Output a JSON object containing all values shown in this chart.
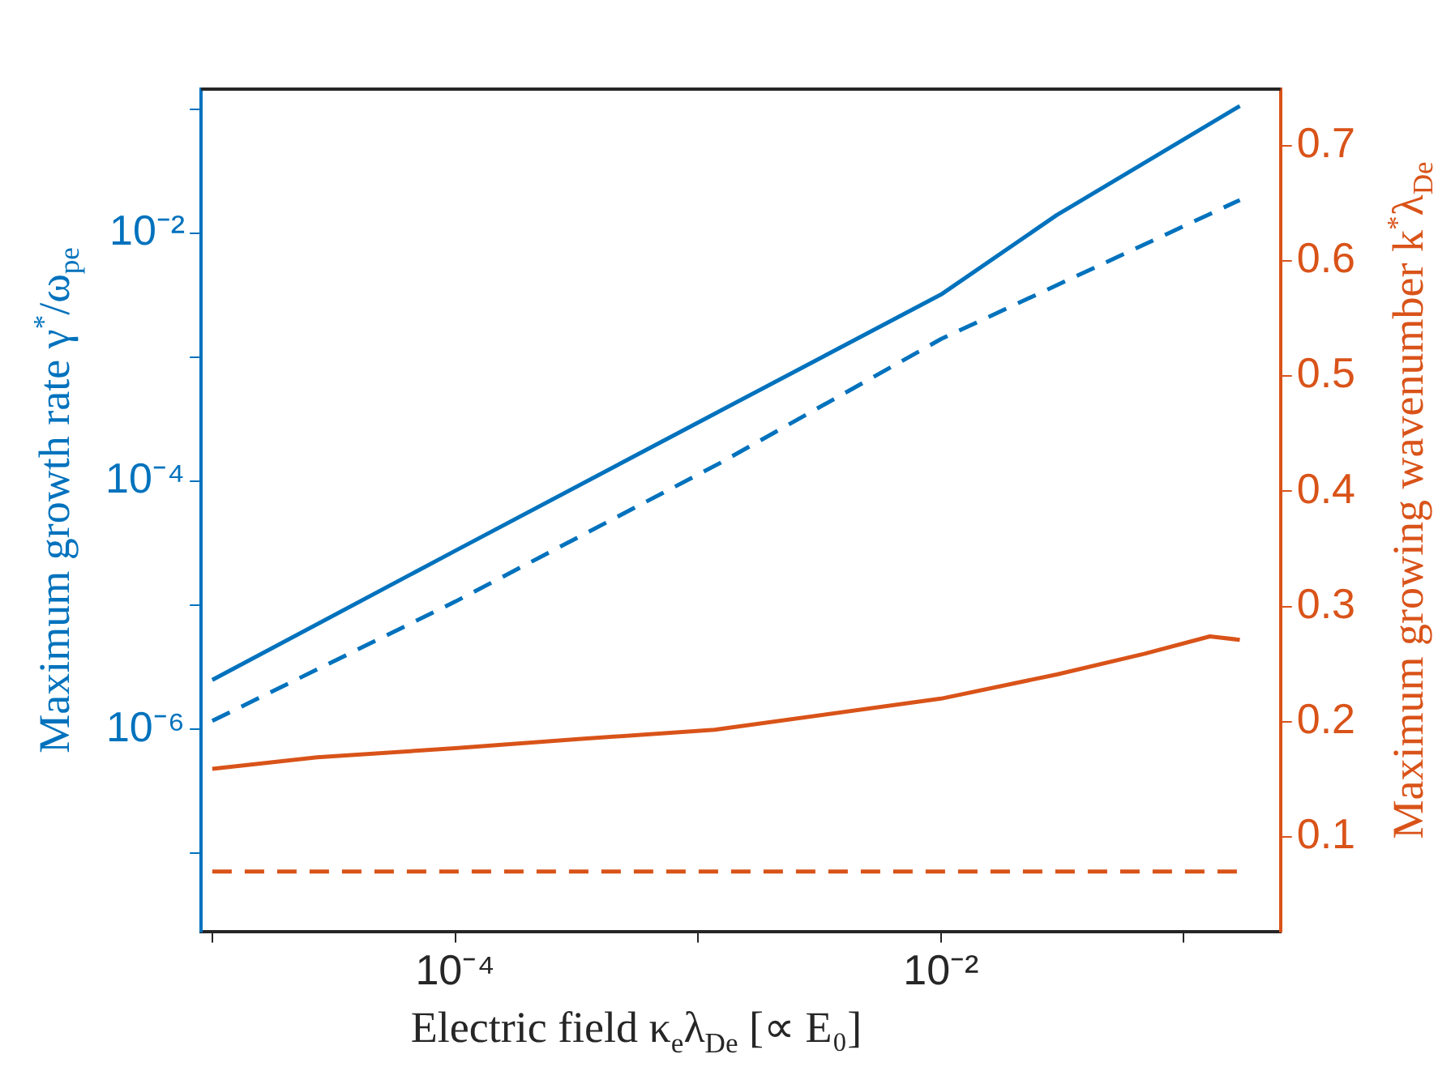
{
  "chart_data": {
    "type": "line",
    "xlabel": "Electric field κ$_{e}$λ$_{De}$ [∝ E₀]",
    "ylabel": "Maximum growth rate γ$^{*}$/ω$_{pe}$",
    "y2label": "Maximum growing wavenumber k$^{*}$λ$_{De}$",
    "log": "xy",
    "xlim": [
      9e-06,
      0.25
    ],
    "xticks": [
      {
        "value": 1e-05,
        "label": null
      },
      {
        "value": 0.0001,
        "label": "10⁻⁴"
      },
      {
        "value": 0.001,
        "label": null
      },
      {
        "value": 0.01,
        "label": "10⁻²"
      },
      {
        "value": 0.1,
        "label": null
      }
    ],
    "ylim": [
      2.35e-08,
      0.145
    ],
    "yticks": [
      {
        "value": 1e-07,
        "label": null
      },
      {
        "value": 1e-06,
        "label": "10⁻⁶"
      },
      {
        "value": 1e-05,
        "label": null
      },
      {
        "value": 0.0001,
        "label": "10⁻⁴"
      },
      {
        "value": 0.001,
        "label": null
      },
      {
        "value": 0.01,
        "label": "10⁻²"
      },
      {
        "value": 0.1,
        "label": null
      }
    ],
    "y2lim": [
      0.018,
      0.749
    ],
    "y2ticks": [
      0.1,
      0.2,
      0.3,
      0.4,
      0.5,
      0.6,
      0.7
    ],
    "legend": false,
    "series": [
      {
        "color": "#0072bd",
        "line_style": "solid",
        "x": [
          1e-05,
          0.0001,
          0.00117,
          0.01,
          0.03,
          0.17
        ],
        "values": [
          2.5e-06,
          2.75e-05,
          0.00035,
          0.0032,
          0.014,
          0.106
        ]
      },
      {
        "color": "#0072bd",
        "line_style": "dashed",
        "x": [
          1e-05,
          0.0001,
          0.00123,
          0.01,
          0.17
        ],
        "values": [
          1.17e-06,
          1.07e-05,
          0.00014,
          0.0014,
          0.0185
        ]
      },
      {
        "color": "#d95319",
        "line_style": "solid",
        "axis": "y2",
        "x": [
          1e-05,
          2.7e-05,
          0.0001,
          0.00033,
          0.00117,
          0.01,
          0.03,
          0.069,
          0.128,
          0.17
        ],
        "values": [
          0.159,
          0.169,
          0.177,
          0.185,
          0.193,
          0.22,
          0.241,
          0.259,
          0.274,
          0.271
        ]
      },
      {
        "color": "#d95319",
        "line_style": "dashed",
        "axis": "y2",
        "x": [
          1e-05,
          0.17
        ],
        "values": [
          0.07,
          0.07
        ]
      }
    ]
  }
}
